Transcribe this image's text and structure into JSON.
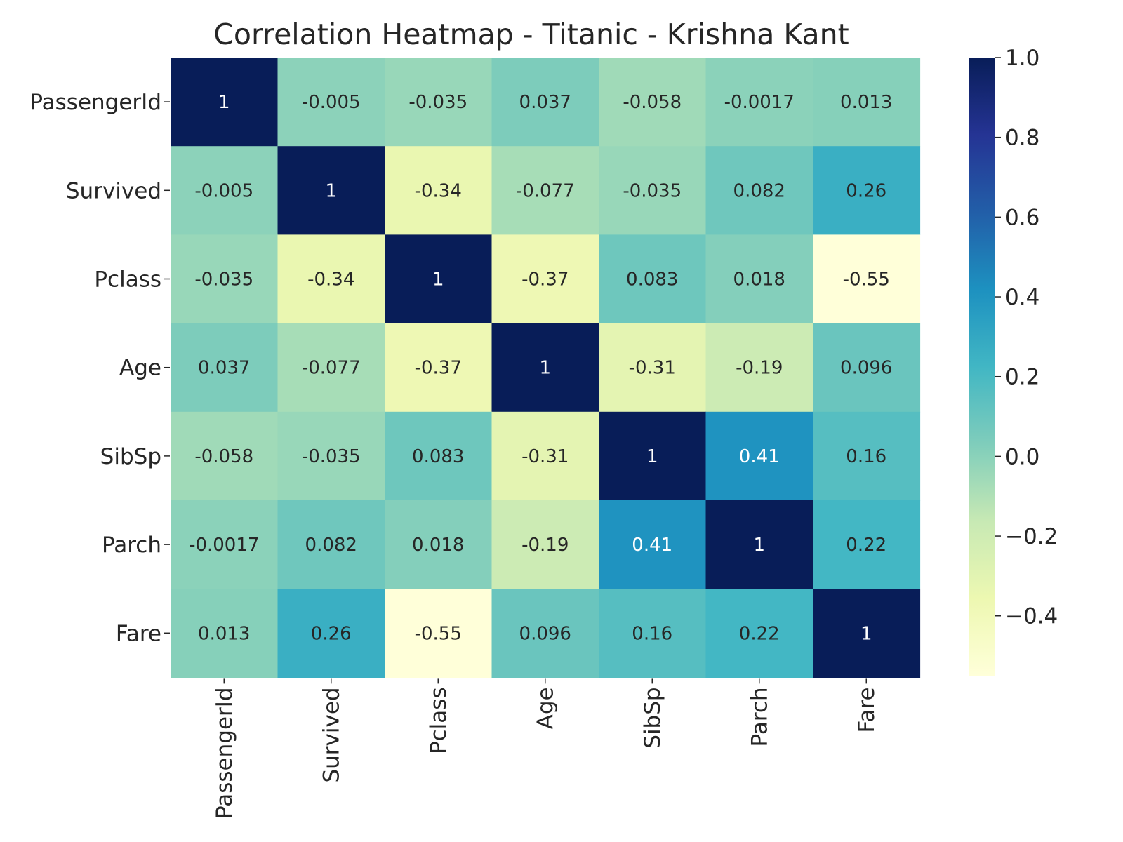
{
  "chart_data": {
    "type": "heatmap",
    "title": "Correlation Heatmap - Titanic - Krishna Kant",
    "xlabel": "",
    "ylabel": "",
    "variables": [
      "PassengerId",
      "Survived",
      "Pclass",
      "Age",
      "SibSp",
      "Parch",
      "Fare"
    ],
    "values": [
      [
        1,
        -0.005,
        -0.035,
        0.037,
        -0.058,
        -0.0017,
        0.013
      ],
      [
        -0.005,
        1,
        -0.34,
        -0.077,
        -0.035,
        0.082,
        0.26
      ],
      [
        -0.035,
        -0.34,
        1,
        -0.37,
        0.083,
        0.018,
        -0.55
      ],
      [
        0.037,
        -0.077,
        -0.37,
        1,
        -0.31,
        -0.19,
        0.096
      ],
      [
        -0.058,
        -0.035,
        0.083,
        -0.31,
        1,
        0.41,
        0.16
      ],
      [
        -0.0017,
        0.082,
        0.018,
        -0.19,
        0.41,
        1,
        0.22
      ],
      [
        0.013,
        0.26,
        -0.55,
        0.096,
        0.16,
        0.22,
        1
      ]
    ],
    "annotations": [
      [
        "1",
        "-0.005",
        "-0.035",
        "0.037",
        "-0.058",
        "-0.0017",
        "0.013"
      ],
      [
        "-0.005",
        "1",
        "-0.34",
        "-0.077",
        "-0.035",
        "0.082",
        "0.26"
      ],
      [
        "-0.035",
        "-0.34",
        "1",
        "-0.37",
        "0.083",
        "0.018",
        "-0.55"
      ],
      [
        "0.037",
        "-0.077",
        "-0.37",
        "1",
        "-0.31",
        "-0.19",
        "0.096"
      ],
      [
        "-0.058",
        "-0.035",
        "0.083",
        "-0.31",
        "1",
        "0.41",
        "0.16"
      ],
      [
        "-0.0017",
        "0.082",
        "0.018",
        "-0.19",
        "0.41",
        "1",
        "0.22"
      ],
      [
        "0.013",
        "0.26",
        "-0.55",
        "0.096",
        "0.16",
        "0.22",
        "1"
      ]
    ],
    "colormap": "YlGnBu",
    "colormap_stops": [
      "#ffffd9",
      "#edf8b1",
      "#c7e9b4",
      "#7fcdbb",
      "#41b6c4",
      "#1d91c0",
      "#225ea8",
      "#253494",
      "#081d58"
    ],
    "vmin": -0.55,
    "vmax": 1.0,
    "colorbar_ticks": [
      1.0,
      0.8,
      0.6,
      0.4,
      0.2,
      0.0,
      -0.2,
      -0.4
    ],
    "colorbar_tick_labels": [
      "1.0",
      "0.8",
      "0.6",
      "0.4",
      "0.2",
      "0.0",
      "−0.2",
      "−0.4"
    ],
    "grid": false,
    "legend": "colorbar-right"
  }
}
